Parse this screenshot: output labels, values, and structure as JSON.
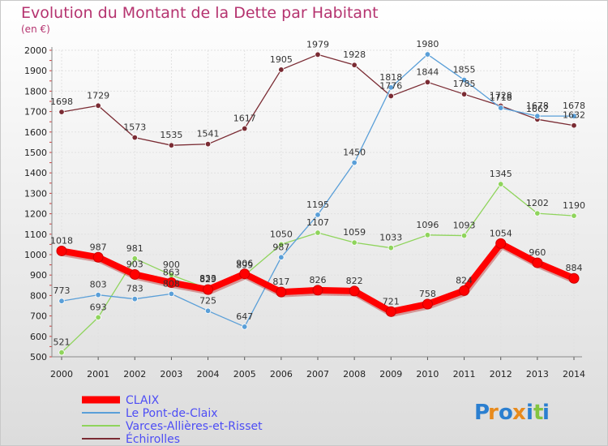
{
  "header": {
    "title": "Evolution du Montant de la Dette par Habitant",
    "subtitle": "(en €)"
  },
  "colors": {
    "title": "#b5336f",
    "background_gradient_top": "#ffffff",
    "background_gradient_bottom": "#dcdcdc",
    "legend_text": "#4d4df5"
  },
  "logo": {
    "letters": [
      "P",
      "r",
      "o",
      "x",
      "i",
      "t",
      "i"
    ],
    "colors": [
      "#2b7fd0",
      "#e88a1c",
      "#2b7fd0",
      "#e88a1c",
      "#2b7fd0",
      "#83c441",
      "#2b7fd0"
    ]
  },
  "chart_data": {
    "type": "line",
    "title": "Evolution du Montant de la Dette par Habitant",
    "subtitle": "(en €)",
    "xlabel": "",
    "ylabel": "",
    "ylim": [
      500,
      2000
    ],
    "yticks": [
      500,
      600,
      700,
      800,
      900,
      1000,
      1100,
      1200,
      1300,
      1400,
      1500,
      1600,
      1700,
      1800,
      1900,
      2000
    ],
    "x": [
      "2000",
      "2001",
      "2002",
      "2003",
      "2004",
      "2005",
      "2006",
      "2007",
      "2008",
      "2009",
      "2010",
      "2011",
      "2012",
      "2013",
      "2014"
    ],
    "grid": true,
    "legend_position": "bottom-left",
    "series": [
      {
        "name": "Échirolles",
        "color": "#7a2b33",
        "values": [
          1698,
          1729,
          1573,
          1535,
          1541,
          1617,
          1905,
          1979,
          1928,
          1776,
          1844,
          1785,
          1728,
          1662,
          1632
        ]
      },
      {
        "name": "Varces-Allières-et-Risset",
        "color": "#8fd45c",
        "values": [
          521,
          693,
          981,
          900,
          833,
          899,
          1050,
          1107,
          1059,
          1033,
          1096,
          1093,
          1345,
          1202,
          1190
        ]
      },
      {
        "name": "Le Pont-de-Claix",
        "color": "#5a9fd8",
        "values": [
          773,
          803,
          783,
          808,
          725,
          647,
          987,
          1195,
          1450,
          1818,
          1980,
          1855,
          1718,
          1678,
          1678
        ]
      },
      {
        "name": "CLAIX",
        "color": "#ff0000",
        "values": [
          1018,
          987,
          903,
          863,
          829,
          906,
          817,
          826,
          822,
          721,
          758,
          824,
          1054,
          960,
          884
        ]
      }
    ],
    "point_labels": [
      {
        "series": "Échirolles",
        "labels": [
          "1698",
          "1729",
          "1573",
          "1535",
          "1541",
          "1617",
          "1905",
          "1979",
          "1928",
          "1776",
          "1844",
          "1785",
          "1728",
          "1662",
          "1632"
        ]
      },
      {
        "series": "Varces-Allières-et-Risset",
        "labels": [
          "521",
          "693",
          "981",
          "900",
          "833",
          "899",
          "1050",
          "1107",
          "1059",
          "1033",
          "1096",
          "1093",
          "1345",
          "1202",
          "1190"
        ]
      },
      {
        "series": "Le Pont-de-Claix",
        "labels": [
          "773",
          "803",
          "783",
          "808",
          "725",
          "647",
          "987",
          "1195",
          "1450",
          "1818",
          "1980",
          "1855",
          "1718",
          "1678",
          "1678"
        ]
      },
      {
        "series": "CLAIX",
        "labels": [
          "1018",
          "987",
          "903",
          "863",
          "829",
          "906",
          "817",
          "826",
          "822",
          "721",
          "758",
          "824",
          "1054",
          "960",
          "884"
        ]
      }
    ],
    "legend": [
      "CLAIX",
      "Le Pont-de-Claix",
      "Varces-Allières-et-Risset",
      "Échirolles"
    ]
  }
}
